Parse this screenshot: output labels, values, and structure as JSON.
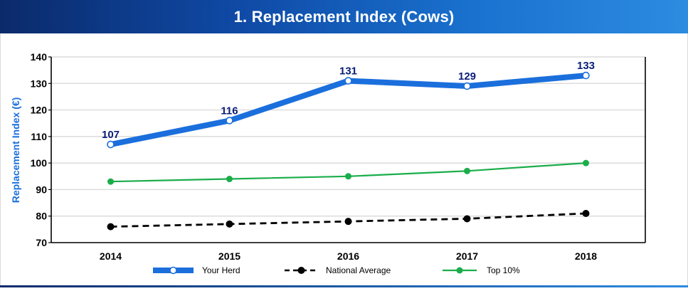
{
  "header": {
    "title": "1. Replacement Index (Cows)"
  },
  "chart_data": {
    "type": "line",
    "title": "1. Replacement Index (Cows)",
    "xlabel": "",
    "ylabel": "Replacement Index (€)",
    "categories": [
      "2014",
      "2015",
      "2016",
      "2017",
      "2018"
    ],
    "ylim": [
      70,
      140
    ],
    "yticks": [
      70,
      80,
      90,
      100,
      110,
      120,
      130,
      140
    ],
    "grid": true,
    "legend_position": "bottom",
    "series": [
      {
        "name": "Your Herd",
        "values": [
          107,
          116,
          131,
          129,
          133
        ],
        "color": "#1b6fdc",
        "data_labels": true,
        "label_color": "#0a1e78"
      },
      {
        "name": "National Average",
        "values": [
          76,
          77,
          78,
          79,
          81
        ],
        "color": "#000000",
        "dashed": true
      },
      {
        "name": "Top 10%",
        "values": [
          93,
          94,
          95,
          97,
          100
        ],
        "color": "#1aad4a"
      }
    ]
  }
}
